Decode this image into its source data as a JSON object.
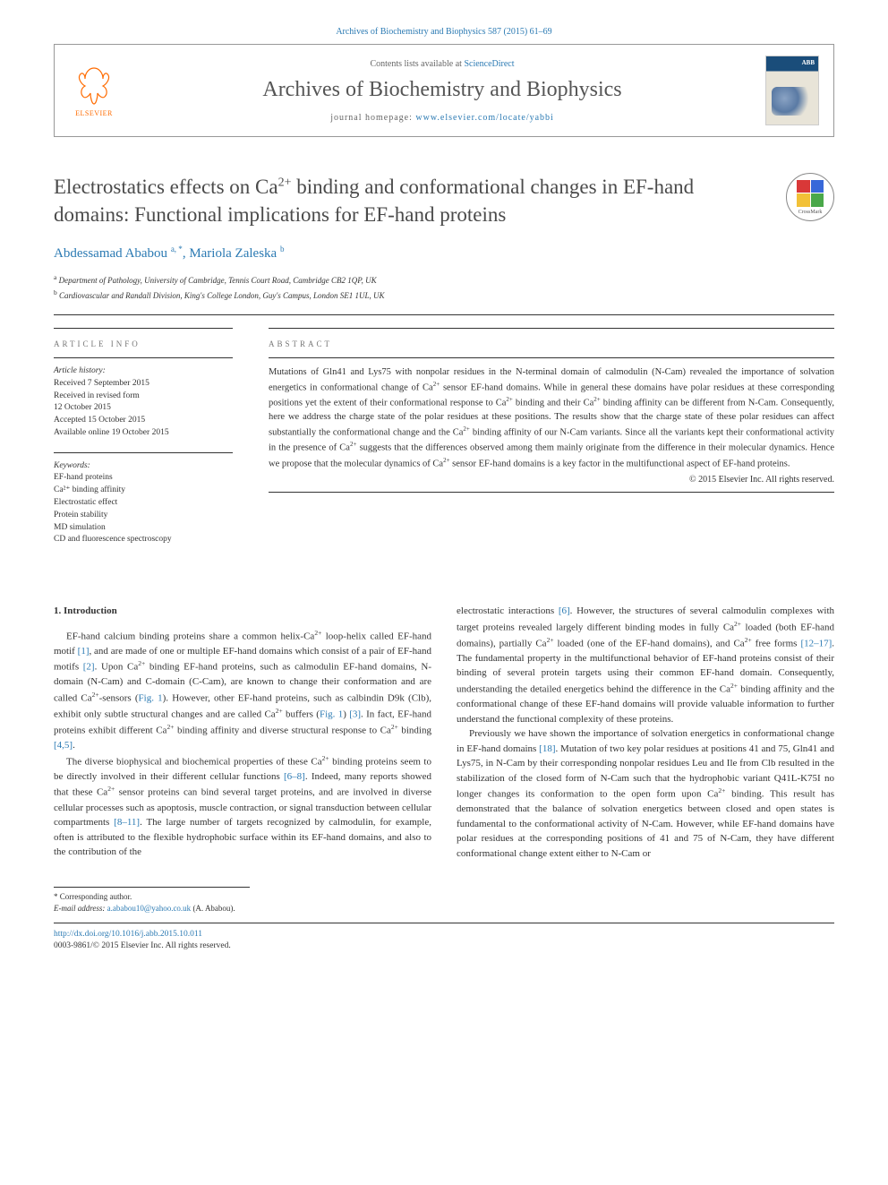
{
  "top_citation": "Archives of Biochemistry and Biophysics 587 (2015) 61–69",
  "header": {
    "contents_prefix": "Contents lists available at ",
    "contents_link": "ScienceDirect",
    "journal_name": "Archives of Biochemistry and Biophysics",
    "homepage_prefix": "journal homepage: ",
    "homepage_url": "www.elsevier.com/locate/yabbi",
    "publisher_logo_text": "ELSEVIER"
  },
  "article": {
    "title_html": "Electrostatics effects on Ca<sup>2+</sup> binding and conformational changes in EF-hand domains: Functional implications for EF-hand proteins",
    "crossmark_label": "CrossMark",
    "authors_html": "Abdessamad Ababou <sup>a, *</sup>, Mariola Zaleska <sup>b</sup>",
    "affiliations": [
      "Department of Pathology, University of Cambridge, Tennis Court Road, Cambridge CB2 1QP, UK",
      "Cardiovascular and Randall Division, King's College London, Guy's Campus, London SE1 1UL, UK"
    ],
    "affiliation_marks": [
      "a",
      "b"
    ]
  },
  "article_info": {
    "heading": "ARTICLE INFO",
    "history_label": "Article history:",
    "history": [
      "Received 7 September 2015",
      "Received in revised form",
      "12 October 2015",
      "Accepted 15 October 2015",
      "Available online 19 October 2015"
    ],
    "keywords_label": "Keywords:",
    "keywords": [
      "EF-hand proteins",
      "Ca²⁺ binding affinity",
      "Electrostatic effect",
      "Protein stability",
      "MD simulation",
      "CD and fluorescence spectroscopy"
    ]
  },
  "abstract": {
    "heading": "ABSTRACT",
    "text_html": "Mutations of Gln41 and Lys75 with nonpolar residues in the N-terminal domain of calmodulin (N-Cam) revealed the importance of solvation energetics in conformational change of Ca<sup>2+</sup> sensor EF-hand domains. While in general these domains have polar residues at these corresponding positions yet the extent of their conformational response to Ca<sup>2+</sup> binding and their Ca<sup>2+</sup> binding affinity can be different from N-Cam. Consequently, here we address the charge state of the polar residues at these positions. The results show that the charge state of these polar residues can affect substantially the conformational change and the Ca<sup>2+</sup> binding affinity of our N-Cam variants. Since all the variants kept their conformational activity in the presence of Ca<sup>2+</sup> suggests that the differences observed among them mainly originate from the difference in their molecular dynamics. Hence we propose that the molecular dynamics of Ca<sup>2+</sup> sensor EF-hand domains is a key factor in the multifunctional aspect of EF-hand proteins.",
    "copyright": "© 2015 Elsevier Inc. All rights reserved."
  },
  "body": {
    "section_number": "1.",
    "section_title": "Introduction",
    "col1_paras": [
      "EF-hand calcium binding proteins share a common helix-Ca<sup>2+</sup> loop-helix called EF-hand motif <span class=\"ref-link\">[1]</span>, and are made of one or multiple EF-hand domains which consist of a pair of EF-hand motifs <span class=\"ref-link\">[2]</span>. Upon Ca<sup>2+</sup> binding EF-hand proteins, such as calmodulin EF-hand domains, N-domain (N-Cam) and C-domain (C-Cam), are known to change their conformation and are called Ca<sup>2+</sup>-sensors (<span class=\"ref-link\">Fig. 1</span>). However, other EF-hand proteins, such as calbindin D9k (Clb), exhibit only subtle structural changes and are called Ca<sup>2+</sup> buffers (<span class=\"ref-link\">Fig. 1</span>) <span class=\"ref-link\">[3]</span>. In fact, EF-hand proteins exhibit different Ca<sup>2+</sup> binding affinity and diverse structural response to Ca<sup>2+</sup> binding <span class=\"ref-link\">[4,5]</span>.",
      "The diverse biophysical and biochemical properties of these Ca<sup>2+</sup> binding proteins seem to be directly involved in their different cellular functions <span class=\"ref-link\">[6–8]</span>. Indeed, many reports showed that these Ca<sup>2+</sup> sensor proteins can bind several target proteins, and are involved in diverse cellular processes such as apoptosis, muscle contraction, or signal transduction between cellular compartments <span class=\"ref-link\">[8–11]</span>. The large number of targets recognized by calmodulin, for example, often is attributed to the flexible hydrophobic surface within its EF-hand domains, and also to the contribution of the"
    ],
    "col2_paras": [
      "electrostatic interactions <span class=\"ref-link\">[6]</span>. However, the structures of several calmodulin complexes with target proteins revealed largely different binding modes in fully Ca<sup>2+</sup> loaded (both EF-hand domains), partially Ca<sup>2+</sup> loaded (one of the EF-hand domains), and Ca<sup>2+</sup> free forms <span class=\"ref-link\">[12–17]</span>. The fundamental property in the multifunctional behavior of EF-hand proteins consist of their binding of several protein targets using their common EF-hand domain. Consequently, understanding the detailed energetics behind the difference in the Ca<sup>2+</sup> binding affinity and the conformational change of these EF-hand domains will provide valuable information to further understand the functional complexity of these proteins.",
      "Previously we have shown the importance of solvation energetics in conformational change in EF-hand domains <span class=\"ref-link\">[18]</span>. Mutation of two key polar residues at positions 41 and 75, Gln41 and Lys75, in N-Cam by their corresponding nonpolar residues Leu and Ile from Clb resulted in the stabilization of the closed form of N-Cam such that the hydrophobic variant Q41L-K75I no longer changes its conformation to the open form upon Ca<sup>2+</sup> binding. This result has demonstrated that the balance of solvation energetics between closed and open states is fundamental to the conformational activity of N-Cam. However, while EF-hand domains have polar residues at the corresponding positions of 41 and 75 of N-Cam, they have different conformational change extent either to N-Cam or"
    ]
  },
  "correspondence": {
    "label": "* Corresponding author.",
    "email_label": "E-mail address:",
    "email": "a.ababou10@yahoo.co.uk",
    "email_name": "(A. Ababou)."
  },
  "footer": {
    "doi": "http://dx.doi.org/10.1016/j.abb.2015.10.011",
    "rights": "0003-9861/© 2015 Elsevier Inc. All rights reserved."
  },
  "colors": {
    "link": "#2b7ab3",
    "elsevier_orange": "#ff6b00",
    "text": "#333333",
    "muted": "#777777",
    "rule": "#333333"
  }
}
